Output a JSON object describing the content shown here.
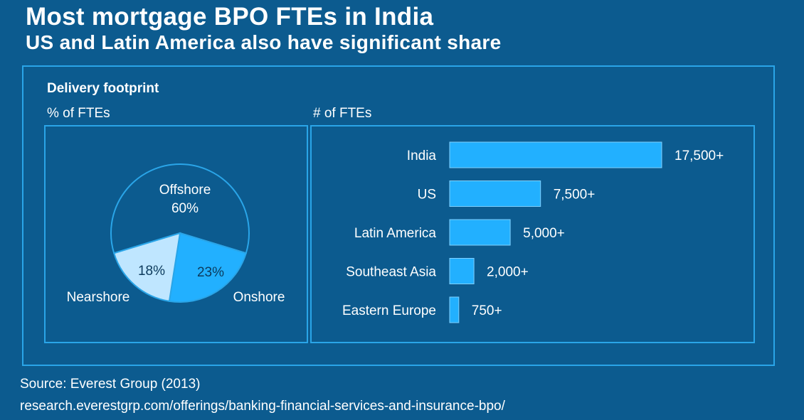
{
  "title": "Most mortgage BPO FTEs in India",
  "subtitle": "US and Latin America also have significant share",
  "section_label": "Delivery footprint",
  "left_panel_label": "% of FTEs",
  "right_panel_label": "# of FTEs",
  "source": "Source: Everest Group (2013)",
  "url": "research.everestgrp.com/offerings/banking-financial-services-and-insurance-bpo/",
  "colors": {
    "background": "#0c5b8f",
    "border": "#2aa5e8",
    "bar": "#22b0ff",
    "pie_offshore": "#0c5b8f",
    "pie_onshore": "#22b0ff",
    "pie_nearshore": "#bfe6ff"
  },
  "chart_data": [
    {
      "type": "pie",
      "title": "% of FTEs",
      "slices": [
        {
          "name": "Offshore",
          "value": 60,
          "label": "60%"
        },
        {
          "name": "Onshore",
          "value": 23,
          "label": "23%"
        },
        {
          "name": "Nearshore",
          "value": 18,
          "label": "18%"
        }
      ]
    },
    {
      "type": "bar",
      "orientation": "horizontal",
      "title": "# of FTEs",
      "categories": [
        "India",
        "US",
        "Latin America",
        "Southeast Asia",
        "Eastern Europe"
      ],
      "values": [
        17500,
        7500,
        5000,
        2000,
        750
      ],
      "value_labels": [
        "17,500+",
        "7,500+",
        "5,000+",
        "2,000+",
        "750+"
      ]
    }
  ]
}
